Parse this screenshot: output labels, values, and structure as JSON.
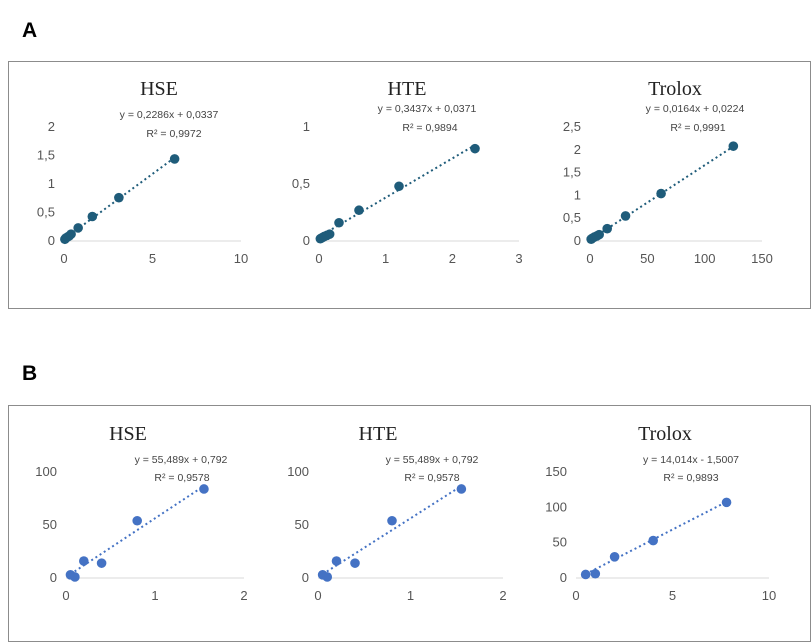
{
  "panels": [
    {
      "label": "A"
    },
    {
      "label": "B"
    }
  ],
  "chart_data": [
    {
      "type": "scatter",
      "panel": "A",
      "title": "HSE",
      "trendline": "linear",
      "equation": "y = 0,2286x + 0,0337",
      "r2": "R² = 0,9972",
      "xlim": [
        0,
        10
      ],
      "ylim": [
        0,
        2
      ],
      "xticks": [
        0,
        5,
        10
      ],
      "xtick_labels": [
        "0",
        "5",
        "10"
      ],
      "yticks": [
        0,
        0.5,
        1,
        1.5,
        2
      ],
      "ytick_labels": [
        "0",
        "0,5",
        "1",
        "1,5",
        "2"
      ],
      "trend": [
        [
          0,
          0.0337
        ],
        [
          6.25,
          1.4625
        ]
      ],
      "x": [
        0.05,
        0.1,
        0.2,
        0.3,
        0.4,
        0.8,
        1.6,
        3.1,
        6.25
      ],
      "y": [
        0.03,
        0.05,
        0.07,
        0.09,
        0.12,
        0.23,
        0.43,
        0.76,
        1.44
      ],
      "color": "#1f5c7a"
    },
    {
      "type": "scatter",
      "panel": "A",
      "title": "HTE",
      "trendline": "linear",
      "equation": "y = 0,3437x + 0,0371",
      "r2": "R² = 0,9894",
      "xlim": [
        0,
        3
      ],
      "ylim": [
        0,
        1
      ],
      "xticks": [
        0,
        1,
        2,
        3
      ],
      "xtick_labels": [
        "0",
        "1",
        "2",
        "3"
      ],
      "yticks": [
        0,
        0.5,
        1
      ],
      "ytick_labels": [
        "0",
        "0,5",
        "1"
      ],
      "trend": [
        [
          0,
          0.0371
        ],
        [
          2.34,
          0.8414
        ]
      ],
      "x": [
        0.02,
        0.05,
        0.08,
        0.12,
        0.16,
        0.3,
        0.6,
        1.2,
        2.34
      ],
      "y": [
        0.02,
        0.03,
        0.04,
        0.05,
        0.06,
        0.16,
        0.27,
        0.48,
        0.81
      ],
      "color": "#1f5c7a"
    },
    {
      "type": "scatter",
      "panel": "A",
      "title": "Trolox",
      "trendline": "linear",
      "equation": "y = 0,0164x + 0,0224",
      "r2": "R² = 0,9991",
      "xlim": [
        0,
        150
      ],
      "ylim": [
        0,
        2.5
      ],
      "xticks": [
        0,
        50,
        100,
        150
      ],
      "xtick_labels": [
        "0",
        "50",
        "100",
        "150"
      ],
      "yticks": [
        0,
        0.5,
        1,
        1.5,
        2,
        2.5
      ],
      "ytick_labels": [
        "0",
        "0,5",
        "1",
        "1,5",
        "2",
        "2,5"
      ],
      "trend": [
        [
          0,
          0.0224
        ],
        [
          125,
          2.0724
        ]
      ],
      "x": [
        1,
        2,
        4,
        6,
        8,
        15,
        31,
        62,
        125
      ],
      "y": [
        0.04,
        0.06,
        0.09,
        0.11,
        0.14,
        0.27,
        0.55,
        1.04,
        2.08
      ],
      "color": "#1f5c7a"
    },
    {
      "type": "scatter",
      "panel": "B",
      "title": "HSE",
      "trendline": "linear",
      "equation": "y = 55,489x + 0,792",
      "r2": "R² = 0,9578",
      "xlim": [
        0,
        2
      ],
      "ylim": [
        0,
        100
      ],
      "xticks": [
        0,
        1,
        2
      ],
      "xtick_labels": [
        "0",
        "1",
        "2"
      ],
      "yticks": [
        0,
        50,
        100
      ],
      "ytick_labels": [
        "0",
        "50",
        "100"
      ],
      "trend": [
        [
          0.05,
          3.57
        ],
        [
          1.56,
          87.36
        ]
      ],
      "x": [
        0.05,
        0.1,
        0.2,
        0.4,
        0.8,
        1.55
      ],
      "y": [
        3,
        1,
        16,
        14,
        54,
        84
      ],
      "color": "#4472c4"
    },
    {
      "type": "scatter",
      "panel": "B",
      "title": "HTE",
      "trendline": "linear",
      "equation": "y = 55,489x + 0,792",
      "r2": "R² = 0,9578",
      "xlim": [
        0,
        2
      ],
      "ylim": [
        0,
        100
      ],
      "xticks": [
        0,
        1,
        2
      ],
      "xtick_labels": [
        "0",
        "1",
        "2"
      ],
      "yticks": [
        0,
        50,
        100
      ],
      "ytick_labels": [
        "0",
        "50",
        "100"
      ],
      "trend": [
        [
          0.05,
          3.57
        ],
        [
          1.56,
          87.36
        ]
      ],
      "x": [
        0.05,
        0.1,
        0.2,
        0.4,
        0.8,
        1.55
      ],
      "y": [
        3,
        1,
        16,
        14,
        54,
        84
      ],
      "color": "#4472c4"
    },
    {
      "type": "scatter",
      "panel": "B",
      "title": "Trolox",
      "trendline": "linear",
      "equation": "y = 14,014x - 1,5007",
      "r2": "R² = 0,9893",
      "xlim": [
        0,
        10
      ],
      "ylim": [
        0,
        150
      ],
      "xticks": [
        0,
        5,
        10
      ],
      "xtick_labels": [
        "0",
        "5",
        "10"
      ],
      "yticks": [
        0,
        50,
        100,
        150
      ],
      "ytick_labels": [
        "0",
        "50",
        "100",
        "150"
      ],
      "trend": [
        [
          0.5,
          5.51
        ],
        [
          7.9,
          109.21
        ]
      ],
      "x": [
        0.5,
        1,
        2,
        4,
        7.8
      ],
      "y": [
        5,
        6,
        30,
        53,
        107
      ],
      "color": "#4472c4"
    }
  ]
}
